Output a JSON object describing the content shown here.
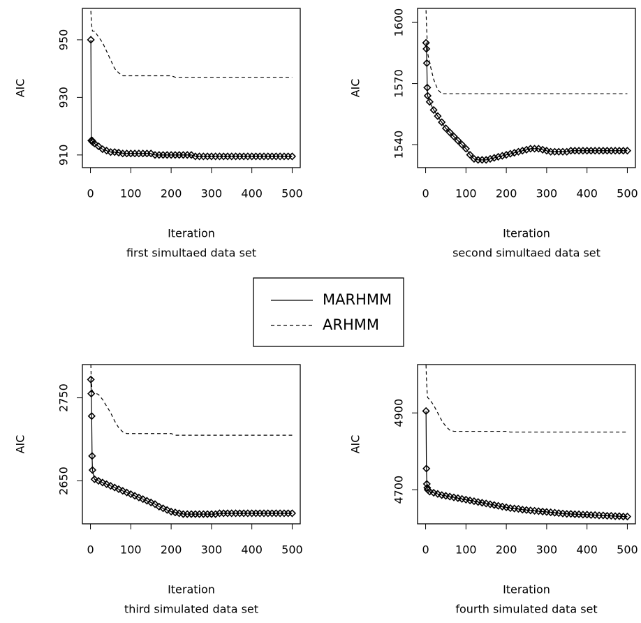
{
  "chart_data": [
    {
      "type": "line",
      "xlabel": "Iteration",
      "subtitle": "first simultaed data set",
      "ylabel": "AIC",
      "legend": "center",
      "x": [
        1,
        2,
        3,
        4,
        5,
        10,
        20,
        30,
        40,
        50,
        60,
        70,
        80,
        90,
        100,
        110,
        120,
        130,
        140,
        150,
        160,
        170,
        180,
        190,
        200,
        210,
        220,
        230,
        240,
        250,
        260,
        270,
        280,
        290,
        300,
        310,
        320,
        330,
        340,
        350,
        360,
        370,
        380,
        390,
        400,
        410,
        420,
        430,
        440,
        450,
        460,
        470,
        480,
        490,
        500
      ],
      "xlim": [
        -20,
        520
      ],
      "xticks": [
        0,
        100,
        200,
        300,
        400,
        500
      ],
      "ylim": [
        905.6,
        960.9
      ],
      "yticks": [
        910,
        930,
        950
      ],
      "series": [
        {
          "name": "MARHMM",
          "color": "#000000",
          "linestyle": "solid",
          "marker": "diamond",
          "values": [
            950,
            915,
            915,
            915,
            914.5,
            914,
            913,
            912,
            911.5,
            911,
            911,
            910.8,
            910.5,
            910.5,
            910.5,
            910.5,
            910.5,
            910.5,
            910.5,
            910.5,
            910,
            910,
            910,
            910,
            910,
            910,
            910,
            910,
            910,
            910,
            909.5,
            909.5,
            909.5,
            909.5,
            909.5,
            909.5,
            909.5,
            909.5,
            909.5,
            909.5,
            909.5,
            909.5,
            909.5,
            909.5,
            909.5,
            909.5,
            909.5,
            909.5,
            909.5,
            909.5,
            909.5,
            909.5,
            909.5,
            909.5,
            909.5
          ]
        },
        {
          "name": "ARHMM",
          "color": "#000000",
          "linestyle": "dashed",
          "values": [
            960,
            957,
            955,
            954,
            953,
            953,
            951,
            949,
            946,
            943,
            940,
            938.5,
            937.5,
            937.5,
            937.5,
            937.5,
            937.5,
            937.5,
            937.5,
            937.5,
            937.5,
            937.5,
            937.5,
            937.5,
            937.5,
            937,
            937,
            937,
            937,
            937,
            937,
            937,
            937,
            937,
            937,
            937,
            937,
            937,
            937,
            937,
            937,
            937,
            937,
            937,
            937,
            937,
            937,
            937,
            937,
            937,
            937,
            937,
            937,
            937,
            937
          ]
        }
      ]
    },
    {
      "type": "line",
      "xlabel": "Iteration",
      "subtitle": "second simultaed data set",
      "ylabel": "AIC",
      "x": [
        1,
        2,
        3,
        4,
        5,
        10,
        20,
        30,
        40,
        50,
        60,
        70,
        80,
        90,
        100,
        110,
        120,
        130,
        140,
        150,
        160,
        170,
        180,
        190,
        200,
        210,
        220,
        230,
        240,
        250,
        260,
        270,
        280,
        290,
        300,
        310,
        320,
        330,
        340,
        350,
        360,
        370,
        380,
        390,
        400,
        410,
        420,
        430,
        440,
        450,
        460,
        470,
        480,
        490,
        500
      ],
      "xlim": [
        -20,
        520
      ],
      "xticks": [
        0,
        100,
        200,
        300,
        400,
        500
      ],
      "ylim": [
        1528.7,
        1606.9
      ],
      "yticks": [
        1540,
        1570,
        1600
      ],
      "series": [
        {
          "color": "#000000",
          "linestyle": "solid",
          "marker": "diamond",
          "values": [
            1590,
            1587,
            1580,
            1568,
            1564,
            1561,
            1557,
            1554,
            1551,
            1548,
            1546,
            1544,
            1542,
            1540,
            1538,
            1535,
            1533,
            1532.5,
            1532.5,
            1532.5,
            1533,
            1533.5,
            1534,
            1534.5,
            1535,
            1535.5,
            1536,
            1536.5,
            1537,
            1537.5,
            1538,
            1538,
            1538,
            1537.5,
            1537,
            1536.5,
            1536.5,
            1536.5,
            1536.5,
            1536.5,
            1537,
            1537,
            1537,
            1537,
            1537,
            1537,
            1537,
            1537,
            1537,
            1537,
            1537,
            1537,
            1537,
            1537,
            1537
          ]
        },
        {
          "color": "#000000",
          "linestyle": "dashed",
          "values": [
            1606,
            1600,
            1595,
            1590,
            1585,
            1580,
            1572,
            1567,
            1565,
            1565,
            1565,
            1565,
            1565,
            1565,
            1565,
            1565,
            1565,
            1565,
            1565,
            1565,
            1565,
            1565,
            1565,
            1565,
            1565,
            1565,
            1565,
            1565,
            1565,
            1565,
            1565,
            1565,
            1565,
            1565,
            1565,
            1565,
            1565,
            1565,
            1565,
            1565,
            1565,
            1565,
            1565,
            1565,
            1565,
            1565,
            1565,
            1565,
            1565,
            1565,
            1565,
            1565,
            1565,
            1565,
            1565
          ]
        }
      ]
    },
    {
      "type": "line",
      "xlabel": "Iteration",
      "subtitle": "third simulated data set",
      "ylabel": "AIC",
      "x": [
        1,
        2,
        3,
        4,
        5,
        10,
        20,
        30,
        40,
        50,
        60,
        70,
        80,
        90,
        100,
        110,
        120,
        130,
        140,
        150,
        160,
        170,
        180,
        190,
        200,
        210,
        220,
        230,
        240,
        250,
        260,
        270,
        280,
        290,
        300,
        310,
        320,
        330,
        340,
        350,
        360,
        370,
        380,
        390,
        400,
        410,
        420,
        430,
        440,
        450,
        460,
        470,
        480,
        490,
        500
      ],
      "xlim": [
        -20,
        520
      ],
      "xticks": [
        0,
        100,
        200,
        300,
        400,
        500
      ],
      "ylim": [
        2598.3,
        2790
      ],
      "yticks": [
        2650,
        2750
      ],
      "series": [
        {
          "color": "#000000",
          "linestyle": "solid",
          "marker": "diamond",
          "values": [
            2772,
            2755,
            2728,
            2680,
            2663,
            2652,
            2650,
            2648,
            2646,
            2644,
            2642,
            2640,
            2638,
            2636,
            2634,
            2632,
            2630,
            2628,
            2626,
            2624,
            2622,
            2619,
            2617,
            2615,
            2613,
            2612,
            2611,
            2610,
            2610,
            2610,
            2610,
            2610,
            2610,
            2610,
            2610,
            2610,
            2611,
            2611,
            2611,
            2611,
            2611,
            2611,
            2611,
            2611,
            2611,
            2611,
            2611,
            2611,
            2611,
            2611,
            2611,
            2611,
            2611,
            2611,
            2611
          ]
        },
        {
          "color": "#000000",
          "linestyle": "dashed",
          "values": [
            2790,
            2770,
            2765,
            2760,
            2758,
            2756,
            2754,
            2748,
            2740,
            2732,
            2722,
            2714,
            2709,
            2707,
            2707,
            2707,
            2707,
            2707,
            2707,
            2707,
            2707,
            2707,
            2707,
            2707,
            2707,
            2705,
            2705,
            2705,
            2705,
            2705,
            2705,
            2705,
            2705,
            2705,
            2705,
            2705,
            2705,
            2705,
            2705,
            2705,
            2705,
            2705,
            2705,
            2705,
            2705,
            2705,
            2705,
            2705,
            2705,
            2705,
            2705,
            2705,
            2705,
            2705,
            2705
          ]
        }
      ]
    },
    {
      "type": "line",
      "xlabel": "Iteration",
      "subtitle": "fourth simulated data set",
      "ylabel": "AIC",
      "x": [
        1,
        2,
        3,
        4,
        5,
        10,
        20,
        30,
        40,
        50,
        60,
        70,
        80,
        90,
        100,
        110,
        120,
        130,
        140,
        150,
        160,
        170,
        180,
        190,
        200,
        210,
        220,
        230,
        240,
        250,
        260,
        270,
        280,
        290,
        300,
        310,
        320,
        330,
        340,
        350,
        360,
        370,
        380,
        390,
        400,
        410,
        420,
        430,
        440,
        450,
        460,
        470,
        480,
        490,
        500
      ],
      "xlim": [
        -20,
        520
      ],
      "xticks": [
        0,
        100,
        200,
        300,
        400,
        500
      ],
      "ylim": [
        4611.1,
        5025.9
      ],
      "yticks": [
        4700,
        4900
      ],
      "series": [
        {
          "color": "#000000",
          "linestyle": "solid",
          "marker": "diamond",
          "values": [
            4905,
            4755,
            4715,
            4705,
            4700,
            4695,
            4692,
            4689,
            4686,
            4684,
            4682,
            4680,
            4678,
            4676,
            4674,
            4672,
            4670,
            4668,
            4666,
            4664,
            4662,
            4660,
            4658,
            4656,
            4654,
            4652,
            4651,
            4650,
            4648,
            4647,
            4646,
            4645,
            4644,
            4643,
            4642,
            4641,
            4640,
            4639,
            4638,
            4637,
            4637,
            4636,
            4636,
            4635,
            4635,
            4634,
            4634,
            4633,
            4633,
            4632,
            4632,
            4631,
            4631,
            4630,
            4630
          ]
        },
        {
          "color": "#000000",
          "linestyle": "dashed",
          "values": [
            5025,
            4990,
            4970,
            4950,
            4940,
            4935,
            4920,
            4900,
            4880,
            4865,
            4855,
            4852,
            4852,
            4852,
            4852,
            4852,
            4852,
            4852,
            4852,
            4852,
            4852,
            4852,
            4852,
            4852,
            4852,
            4850,
            4850,
            4850,
            4850,
            4850,
            4850,
            4850,
            4850,
            4850,
            4850,
            4850,
            4850,
            4850,
            4850,
            4850,
            4850,
            4850,
            4850,
            4850,
            4850,
            4850,
            4850,
            4850,
            4850,
            4850,
            4850,
            4850,
            4850,
            4850,
            4850
          ]
        }
      ]
    }
  ]
}
